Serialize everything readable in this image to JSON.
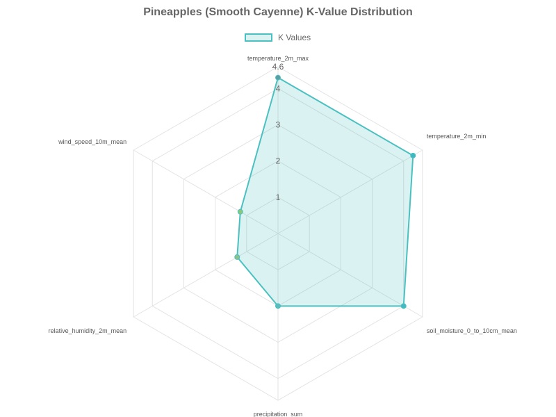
{
  "chart_data": {
    "type": "radar",
    "title": "Pineapples (Smooth Cayenne) K-Value Distribution",
    "axes": [
      "temperature_2m_max",
      "temperature_2m_min",
      "soil_moisture_0_to_10cm_mean",
      "precipitation_sum",
      "relative_humidity_2m_mean",
      "wind_speed_10m_mean"
    ],
    "series": [
      {
        "name": "K Values",
        "values": [
          4.3,
          4.3,
          4.0,
          2.0,
          1.3,
          1.2
        ],
        "point_colors": [
          "#5f9ea0",
          "#3fb6c4",
          "#45b9c0",
          "#5bbcc0",
          "#8bc48a",
          "#8bc87a"
        ]
      }
    ],
    "r_min": 0,
    "r_max": 4.6,
    "ticks": [
      "1",
      "2",
      "3",
      "4",
      "4.6"
    ],
    "tick_values": [
      1,
      2,
      3,
      4,
      4.6
    ],
    "line_color": "#4bc0c0",
    "fill_color": "rgba(75,192,192,0.2)",
    "grid": true,
    "legend_position": "top"
  }
}
